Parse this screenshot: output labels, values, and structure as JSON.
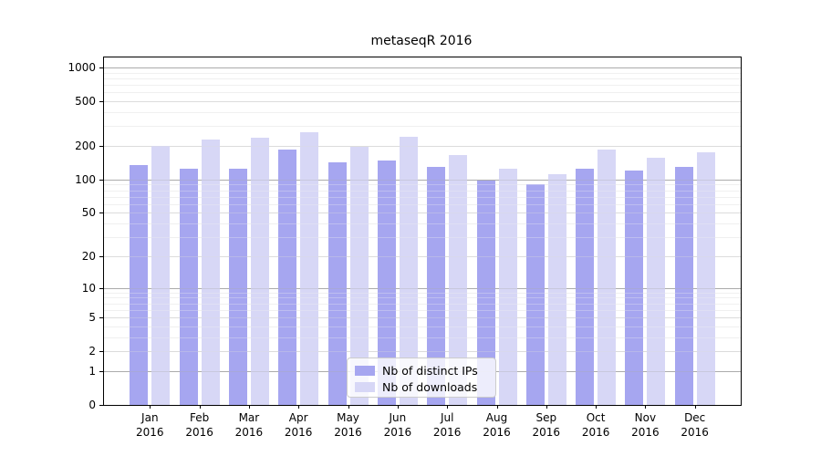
{
  "chart_data": {
    "type": "bar",
    "title": "metaseqR 2016",
    "categories": [
      "Jan 2016",
      "Feb 2016",
      "Mar 2016",
      "Apr 2016",
      "May 2016",
      "Jun 2016",
      "Jul 2016",
      "Aug 2016",
      "Sep 2016",
      "Oct 2016",
      "Nov 2016",
      "Dec 2016"
    ],
    "series": [
      {
        "name": "Nb of distinct IPs",
        "color": "#a6a6f0",
        "values": [
          134,
          125,
          126,
          187,
          142,
          149,
          129,
          98,
          90,
          126,
          120,
          131
        ]
      },
      {
        "name": "Nb of downloads",
        "color": "#d7d7f6",
        "values": [
          200,
          228,
          238,
          263,
          195,
          243,
          167,
          125,
          112,
          185,
          156,
          177
        ]
      }
    ],
    "yticks": [
      0,
      1,
      2,
      5,
      10,
      20,
      50,
      100,
      200,
      500,
      1000
    ],
    "yscale": "log1p",
    "ylim": [
      0,
      1230
    ],
    "xlabel": "",
    "ylabel": "",
    "grid": "horizontal",
    "legend_position": "lower-center"
  },
  "colors": {
    "grid_major": "#ababab",
    "grid_mid": "#dcdcdc",
    "grid_minor": "#f0f0f0",
    "axis": "#000000",
    "legend_border": "#cccccc"
  }
}
